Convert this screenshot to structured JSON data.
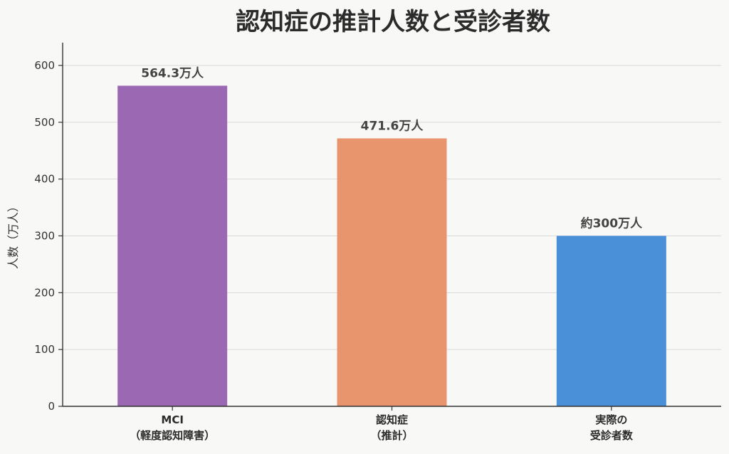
{
  "chart_data": {
    "type": "bar",
    "title": "認知症の推計人数と受診者数",
    "ylabel": "人数（万人）",
    "xlabel": "",
    "ylim": [
      0,
      640
    ],
    "yticks": [
      0,
      100,
      200,
      300,
      400,
      500,
      600
    ],
    "grid": true,
    "categories": [
      [
        "MCI",
        "（軽度認知障害）"
      ],
      [
        "認知症",
        "（推計）"
      ],
      [
        "実際の",
        "受診者数"
      ]
    ],
    "values": [
      564.3,
      471.6,
      300
    ],
    "data_labels": [
      "564.3万人",
      "471.6万人",
      "約300万人"
    ],
    "colors": [
      "#9b69b3",
      "#e8956e",
      "#4a90d9"
    ]
  }
}
